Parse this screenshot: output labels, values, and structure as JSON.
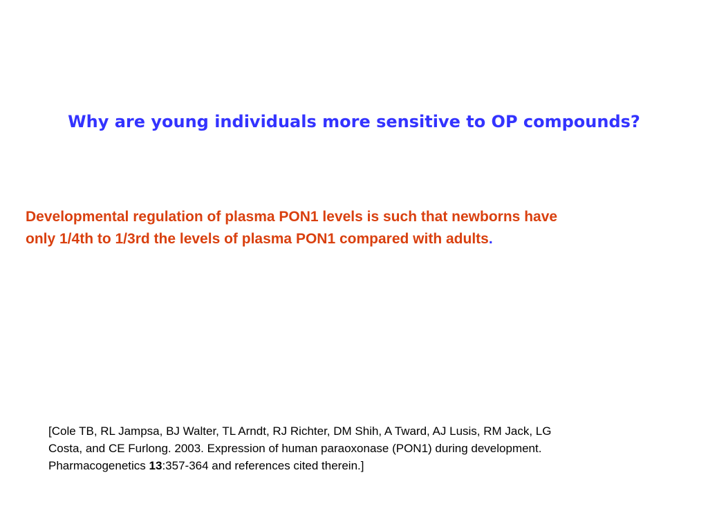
{
  "slide": {
    "title": "Why are young individuals more sensitive to OP compounds?",
    "body": {
      "lines": [
        "Developmental regulation of plasma PON1 levels is such that newborns have",
        "only 1/4th to 1/3rd the levels of plasma PON1 compared with adults"
      ],
      "period": "."
    },
    "reference": {
      "lines": [
        "[Cole TB, RL Jampsa, BJ Walter, TL Arndt, RJ Richter, DM Shih, A Tward, AJ Lusis, RM Jack, LG",
        "Costa, and CE Furlong. 2003. Expression of human paraoxonase (PON1) during development."
      ],
      "journal": "Pharmacogenetics ",
      "volume": "13",
      "pages": ":357-364 and references cited therein.]"
    }
  }
}
